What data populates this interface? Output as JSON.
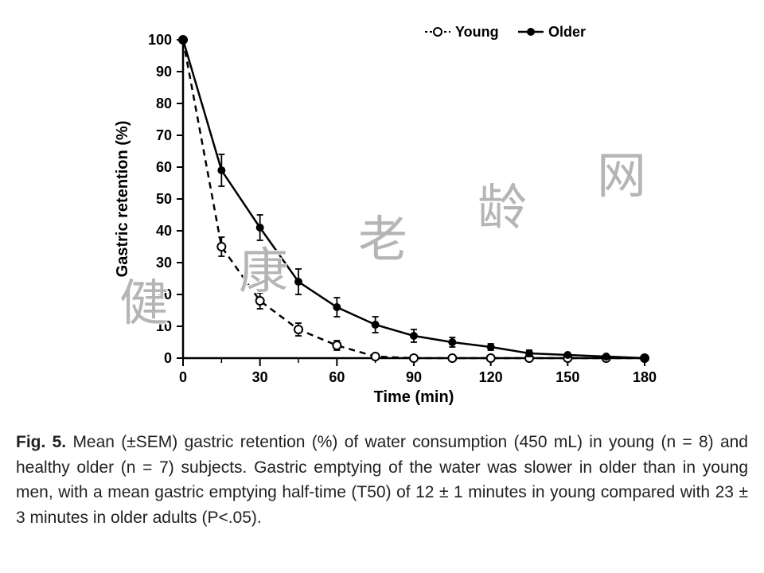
{
  "chart": {
    "type": "line",
    "xlabel": "Time (min)",
    "ylabel": "Gastric retention (%)",
    "xlim": [
      0,
      180
    ],
    "ylim": [
      0,
      100
    ],
    "xtick_step": 30,
    "ytick_step": 10,
    "xtick_minor_step": 15,
    "background_color": "#ffffff",
    "axis_color": "#000000",
    "axis_line_width": 2.5,
    "tick_fontsize": 18,
    "label_fontsize": 20,
    "series": [
      {
        "name": "Young",
        "marker": "open-circle",
        "line_style": "dashed",
        "color": "#000000",
        "line_width": 2.5,
        "marker_size": 5,
        "x": [
          0,
          15,
          30,
          45,
          60,
          75,
          90,
          105,
          120,
          135,
          150,
          165,
          180
        ],
        "y": [
          100,
          35,
          18,
          9,
          4,
          0.5,
          0,
          0,
          0,
          0,
          0,
          0,
          0
        ],
        "err": [
          0,
          3,
          2.5,
          2,
          1.5,
          0.5,
          0,
          0,
          0,
          0,
          0,
          0,
          0
        ]
      },
      {
        "name": "Older",
        "marker": "filled-circle",
        "line_style": "solid",
        "color": "#000000",
        "line_width": 2.5,
        "marker_size": 5,
        "x": [
          0,
          15,
          30,
          45,
          60,
          75,
          90,
          105,
          120,
          135,
          150,
          165,
          180
        ],
        "y": [
          100,
          59,
          41,
          24,
          16,
          10.5,
          7,
          5,
          3.5,
          1.5,
          1,
          0.5,
          0
        ],
        "err": [
          0,
          5,
          4,
          4,
          3,
          2.5,
          2,
          1.5,
          1,
          1,
          0.5,
          0.5,
          0
        ]
      }
    ],
    "legend": {
      "items": [
        {
          "label": "Young",
          "marker": "open-circle",
          "line_style": "dashed"
        },
        {
          "label": "Older",
          "marker": "filled-circle",
          "line_style": "solid"
        }
      ],
      "fontsize": 18,
      "position": "top-right"
    }
  },
  "caption": {
    "prefix": "Fig. 5.",
    "text": "Mean (±SEM) gastric retention (%) of water consumption (450 mL) in young (n = 8) and healthy older (n = 7) subjects. Gastric emptying of the water was slower in older than in young men, with a mean gastric emptying half-time (T50) of 12 ± 1 minutes in young compared with 23 ± 3 minutes in older adults (P<.05)."
  },
  "watermark": {
    "chars": [
      "健",
      "康",
      "老",
      "龄",
      "网"
    ],
    "color": "rgba(120,120,120,0.55)",
    "fontsize": 62
  }
}
